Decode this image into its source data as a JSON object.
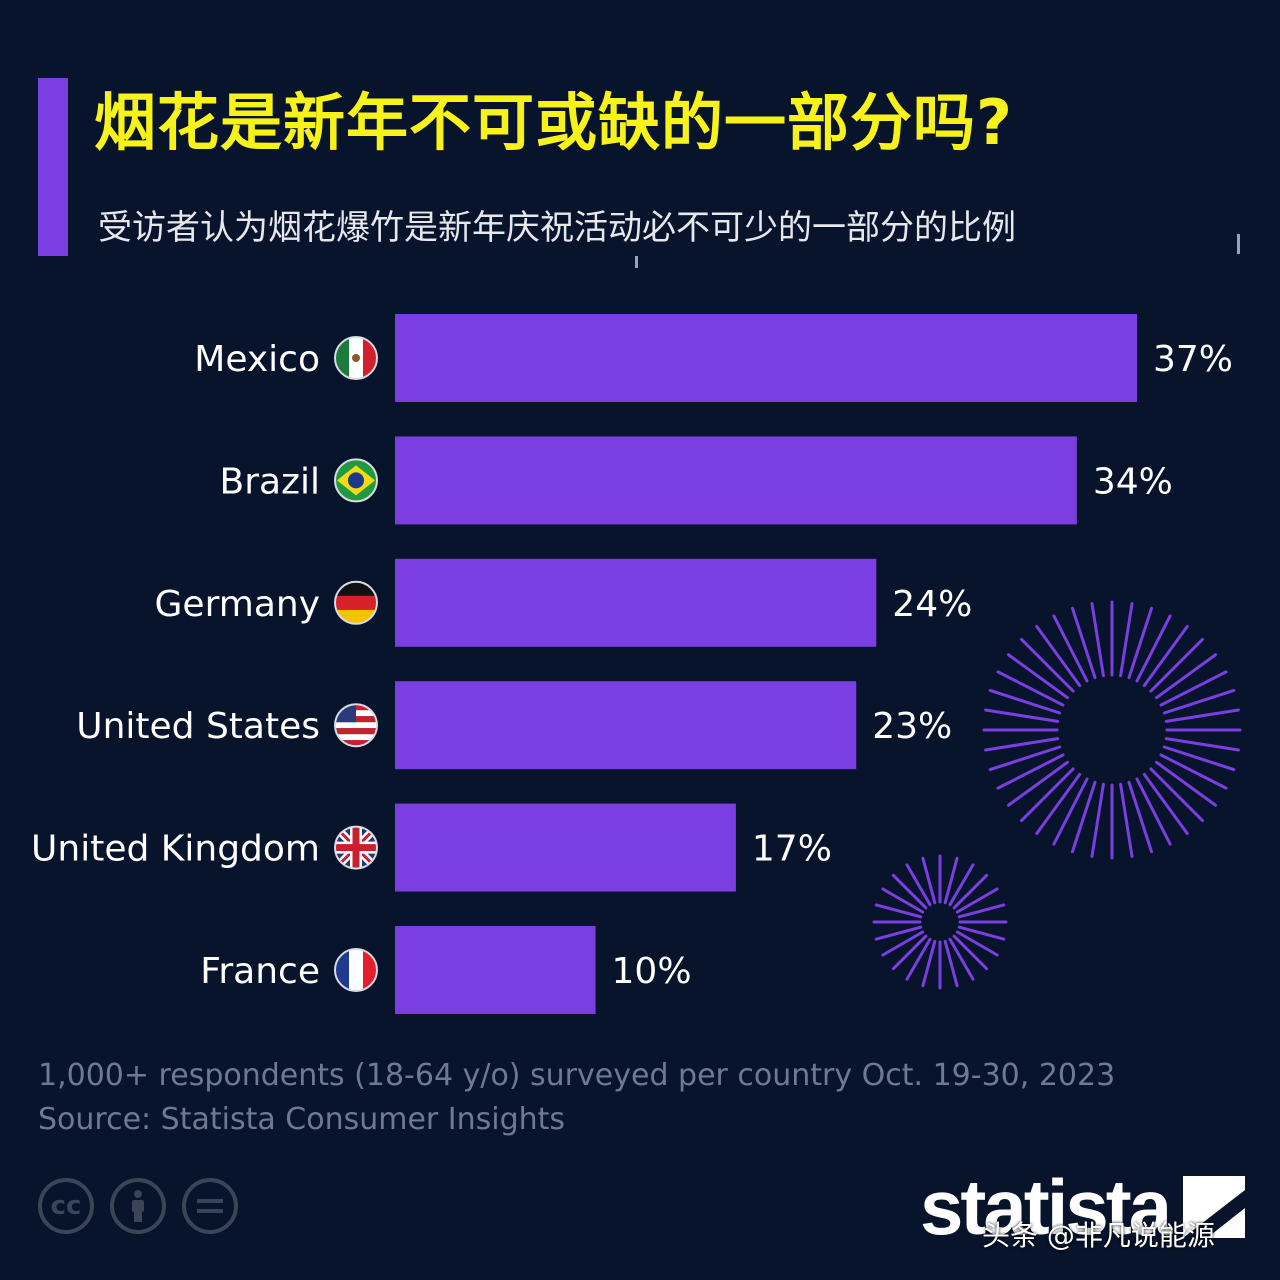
{
  "header": {
    "title": "烟花是新年不可或缺的一部分吗?",
    "subtitle": "受访者认为烟花爆竹是新年庆祝活动必不可少的一部分的比例"
  },
  "colors": {
    "bar": "#7b3ee0",
    "background": "#07142b",
    "title": "#f7f21a"
  },
  "chart_data": {
    "type": "bar",
    "orientation": "horizontal",
    "categories": [
      "Mexico",
      "Brazil",
      "Germany",
      "United States",
      "United Kingdom",
      "France"
    ],
    "values": [
      37,
      34,
      24,
      23,
      17,
      10
    ],
    "value_labels": [
      "37%",
      "34%",
      "24%",
      "23%",
      "17%",
      "10%"
    ],
    "flags": [
      "mexico-flag",
      "brazil-flag",
      "germany-flag",
      "usa-flag",
      "uk-flag",
      "france-flag"
    ],
    "title": "烟花是新年不可或缺的一部分吗?",
    "subtitle": "受访者认为烟花爆竹是新年庆祝活动必不可少的一部分的比例",
    "xlim": [
      0,
      37
    ],
    "grid": false,
    "legend": "none"
  },
  "footer": {
    "note": "1,000+ respondents (18-64 y/o) surveyed per country Oct. 19-30, 2023",
    "source": "Source: Statista Consumer Insights",
    "logo": "statista",
    "license_icons": [
      "cc-icon",
      "by-icon",
      "nd-icon"
    ],
    "watermark": "头条 @非凡说能源"
  }
}
